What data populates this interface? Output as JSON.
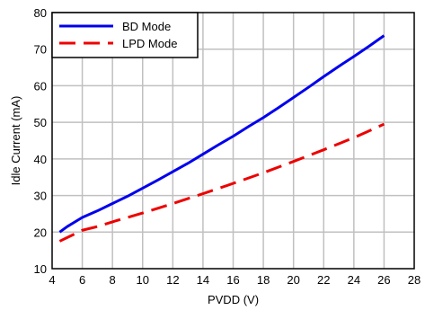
{
  "chart_data": {
    "type": "line",
    "title": "",
    "xlabel": "PVDD (V)",
    "ylabel": "Idle Current (mA)",
    "xlim": [
      4,
      28
    ],
    "ylim": [
      10,
      80
    ],
    "x_ticks": [
      4,
      6,
      8,
      10,
      12,
      14,
      16,
      18,
      20,
      22,
      24,
      26,
      28
    ],
    "y_ticks": [
      10,
      20,
      30,
      40,
      50,
      60,
      70,
      80
    ],
    "x_tick_labels": [
      "4",
      "6",
      "8",
      "10",
      "12",
      "14",
      "16",
      "18",
      "20",
      "22",
      "24",
      "26",
      "28"
    ],
    "y_tick_labels": [
      "10",
      "20",
      "30",
      "40",
      "50",
      "60",
      "70",
      "80"
    ],
    "grid": true,
    "legend_position": "top-left",
    "series": [
      {
        "name": "BD Mode",
        "color": "#0000ee",
        "dash": "solid",
        "x": [
          4.5,
          5,
          6,
          7,
          8,
          9,
          10,
          11,
          12,
          13,
          14,
          15,
          16,
          17,
          18,
          19,
          20,
          21,
          22,
          23,
          24,
          25,
          26
        ],
        "y": [
          20,
          21.5,
          24,
          25.8,
          27.8,
          29.8,
          32,
          34.2,
          36.5,
          38.8,
          41.3,
          43.8,
          46.2,
          48.8,
          51.3,
          54,
          56.8,
          59.6,
          62.5,
          65.3,
          68,
          70.8,
          73.7
        ]
      },
      {
        "name": "LPD Mode",
        "color": "#ee0000",
        "dash": "dashed",
        "x": [
          4.5,
          5,
          6,
          7,
          8,
          10,
          12,
          14,
          16,
          18,
          20,
          22,
          24,
          26
        ],
        "y": [
          17.5,
          18.5,
          20.5,
          21.5,
          22.8,
          25.2,
          27.8,
          30.5,
          33.3,
          36.2,
          39.3,
          42.5,
          45.8,
          49.5
        ]
      }
    ]
  }
}
